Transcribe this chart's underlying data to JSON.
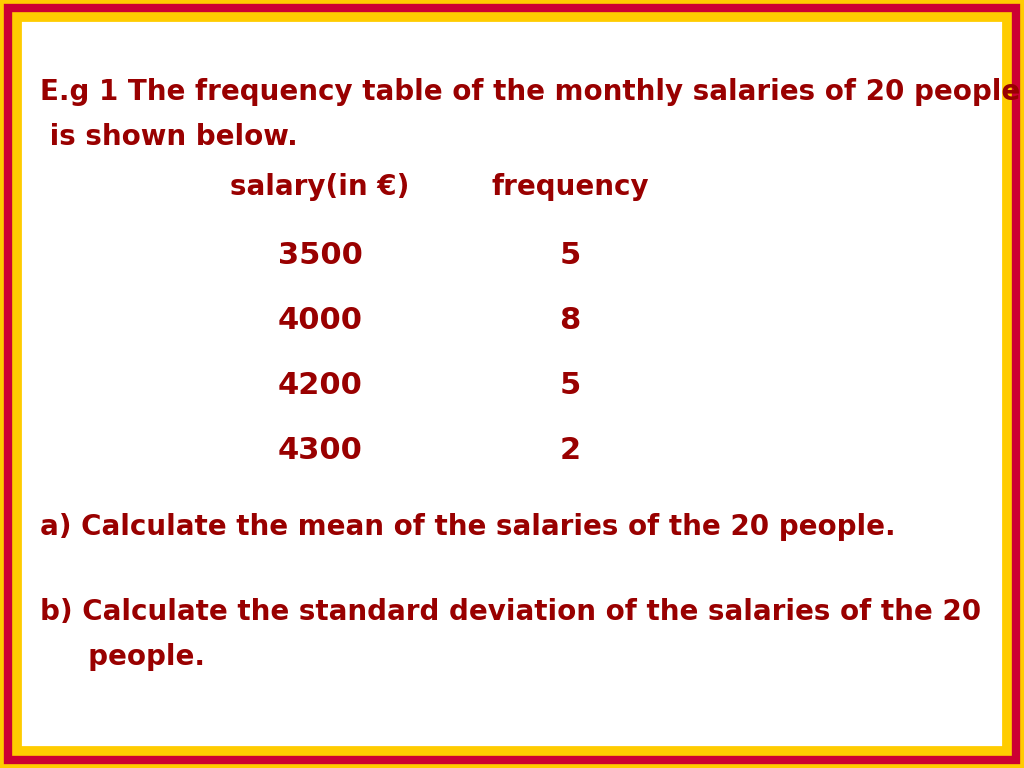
{
  "title_line1": "E.g 1 The frequency table of the monthly salaries of 20 people",
  "title_line2": " is shown below.",
  "col1_header": "salary(in €)",
  "col2_header": "frequency",
  "salaries": [
    "3500",
    "4000",
    "4200",
    "4300"
  ],
  "frequencies": [
    "5",
    "8",
    "5",
    "2"
  ],
  "question_a": "a) Calculate the mean of the salaries of the 20 people.",
  "question_b1": "b) Calculate the standard deviation of the salaries of the 20",
  "question_b2": "     people.",
  "text_color": "#990000",
  "bg_color": "#ffffff",
  "border_red": "#cc0033",
  "border_gold": "#ffcc00",
  "figsize": [
    10.24,
    7.68
  ],
  "dpi": 100,
  "title_fontsize": 20,
  "header_fontsize": 20,
  "data_fontsize": 22,
  "question_fontsize": 20
}
